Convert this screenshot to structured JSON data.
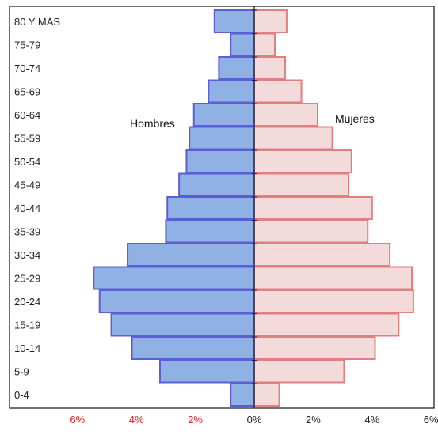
{
  "chart_data": {
    "type": "bar",
    "orientation": "horizontal",
    "layout": "population-pyramid",
    "categories": [
      "80 Y MÁS",
      "75-79",
      "70-74",
      "65-69",
      "60-64",
      "55-59",
      "50-54",
      "45-49",
      "40-44",
      "35-39",
      "30-34",
      "25-29",
      "20-24",
      "15-19",
      "10-14",
      "5-9",
      "0-4"
    ],
    "series": [
      {
        "name": "Hombres",
        "side": "left",
        "color": "#8fb1e3",
        "stroke": "#5b5fd6",
        "values": [
          1.35,
          0.8,
          1.2,
          1.55,
          2.05,
          2.2,
          2.3,
          2.55,
          2.95,
          3.0,
          4.3,
          5.45,
          5.25,
          4.85,
          4.15,
          3.2,
          0.8
        ]
      },
      {
        "name": "Mujeres",
        "side": "right",
        "color": "#f3dbdb",
        "stroke": "#e07f7f",
        "values": [
          1.1,
          0.7,
          1.05,
          1.6,
          2.15,
          2.65,
          3.3,
          3.2,
          4.0,
          3.85,
          4.6,
          5.35,
          5.4,
          4.9,
          4.1,
          3.05,
          0.85
        ]
      }
    ],
    "x_ticks": [
      {
        "label": "6%",
        "value": -6,
        "color": "#e02020"
      },
      {
        "label": "4%",
        "value": -4,
        "color": "#e02020"
      },
      {
        "label": "2%",
        "value": -2,
        "color": "#e02020"
      },
      {
        "label": "0%",
        "value": 0,
        "color": "#222222"
      },
      {
        "label": "2%",
        "value": 2,
        "color": "#222222"
      },
      {
        "label": "4%",
        "value": 4,
        "color": "#222222"
      },
      {
        "label": "6%",
        "value": 6,
        "color": "#222222"
      }
    ],
    "xlim": [
      -6,
      6
    ],
    "legend": [
      {
        "label": "Hombres",
        "placement": "upper-left"
      },
      {
        "label": "Mujeres",
        "placement": "upper-right"
      }
    ],
    "grid": false
  }
}
